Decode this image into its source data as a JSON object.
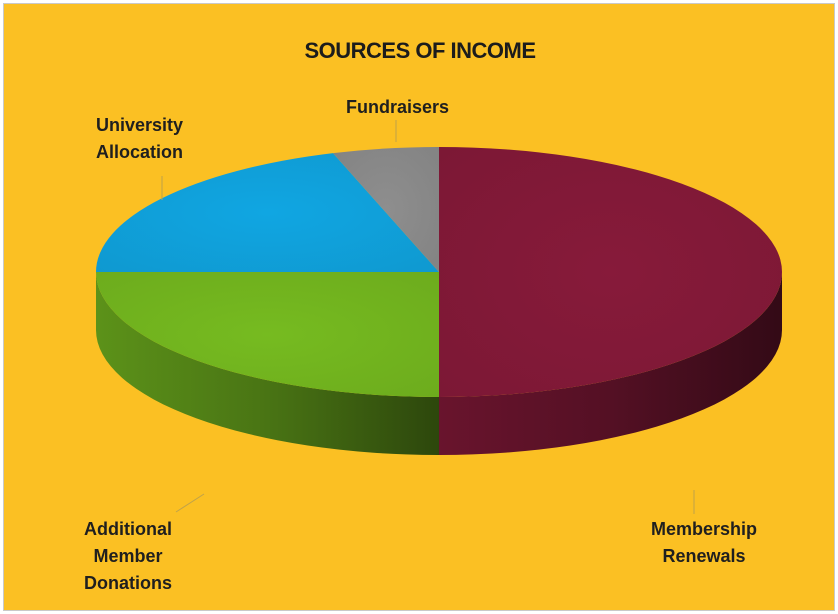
{
  "chart_data": {
    "type": "pie",
    "title": "SOURCES OF INCOME",
    "three_d": true,
    "background_color": "#fbc023",
    "slices": [
      {
        "label_lines": [
          "Membership",
          "Renewals"
        ],
        "value": 50,
        "color": "#871a3a"
      },
      {
        "label_lines": [
          "Additional",
          "Member",
          "Donations"
        ],
        "value": 25,
        "color": "#76bb20"
      },
      {
        "label_lines": [
          "University",
          "Allocation"
        ],
        "value": 20,
        "color": "#10a6e2"
      },
      {
        "label_lines": [
          "Fundraisers"
        ],
        "value": 5,
        "color": "#8e8e8e"
      }
    ]
  }
}
